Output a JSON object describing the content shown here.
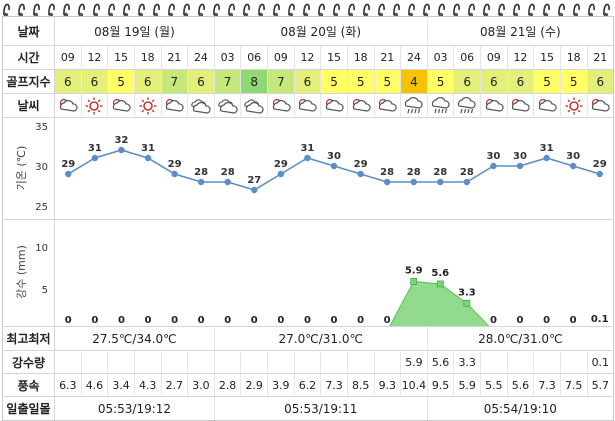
{
  "labels": {
    "date": "날짜",
    "time": "시간",
    "golf": "골프지수",
    "weather": "날씨",
    "minmax": "최고최저",
    "precip": "강수량",
    "wind": "풍속",
    "sun": "일출일몰"
  },
  "days": [
    "08월 19일 (월)",
    "08월 20일 (화)",
    "08월 21일 (수)"
  ],
  "hours": [
    "09",
    "12",
    "15",
    "18",
    "21",
    "24",
    "03",
    "06",
    "09",
    "12",
    "15",
    "18",
    "21",
    "24",
    "03",
    "06",
    "09",
    "12",
    "15",
    "18",
    "21"
  ],
  "golf_index": [
    6,
    6,
    5,
    6,
    7,
    6,
    7,
    8,
    7,
    6,
    5,
    5,
    5,
    4,
    5,
    6,
    6,
    6,
    5,
    5,
    6
  ],
  "golf_colors": {
    "4": "#f5c200",
    "5": "#ffff66",
    "6": "#e4ef7a",
    "7": "#c6e87a",
    "8": "#8fd873"
  },
  "weather_icons": [
    "partly-cloudy-icon",
    "sun-icon",
    "partly-cloudy-icon",
    "sun-icon",
    "partly-cloudy-icon",
    "cloudy-icon",
    "cloudy-icon",
    "cloudy-icon",
    "partly-cloudy-icon",
    "partly-cloudy-icon",
    "partly-cloudy-icon",
    "partly-cloudy-icon",
    "partly-cloudy-icon",
    "rain-icon",
    "rain-icon",
    "rain-icon",
    "partly-cloudy-icon",
    "partly-cloudy-icon",
    "partly-cloudy-icon",
    "sun-icon",
    "partly-cloudy-icon"
  ],
  "minmax": [
    "27.5℃/34.0℃",
    "27.0℃/31.0℃",
    "28.0℃/31.0℃"
  ],
  "precip": [
    "",
    "",
    "",
    "",
    "",
    "",
    "",
    "",
    "",
    "",
    "",
    "",
    "",
    "5.9",
    "5.6",
    "3.3",
    "",
    "",
    "",
    "",
    "0.1"
  ],
  "wind": [
    "6.3",
    "4.6",
    "3.4",
    "4.3",
    "2.7",
    "3.0",
    "2.8",
    "2.9",
    "3.9",
    "6.2",
    "7.3",
    "8.5",
    "9.3",
    "10.4",
    "9.5",
    "5.9",
    "5.5",
    "5.6",
    "7.3",
    "7.5",
    "5.7"
  ],
  "sun": [
    "05:53/19:12",
    "05:53/19:11",
    "05:54/19:10"
  ],
  "chart_data": [
    {
      "type": "line",
      "ylabel": "기온 (℃)",
      "x": [
        "09",
        "12",
        "15",
        "18",
        "21",
        "24",
        "03",
        "06",
        "09",
        "12",
        "15",
        "18",
        "21",
        "24",
        "03",
        "06",
        "09",
        "12",
        "15",
        "18",
        "21"
      ],
      "values": [
        29,
        31,
        32,
        31,
        29,
        28,
        28,
        27,
        29,
        31,
        30,
        29,
        28,
        28,
        28,
        28,
        30,
        30,
        31,
        30,
        29
      ],
      "ylim": [
        25,
        35
      ],
      "yticks": [
        25,
        30,
        35
      ],
      "color": "#5b8ec9"
    },
    {
      "type": "area",
      "ylabel": "강수 (mm)",
      "x": [
        "09",
        "12",
        "15",
        "18",
        "21",
        "24",
        "03",
        "06",
        "09",
        "12",
        "15",
        "18",
        "21",
        "24",
        "03",
        "06",
        "09",
        "12",
        "15",
        "18",
        "21"
      ],
      "values": [
        0,
        0,
        0,
        0,
        0,
        0,
        0,
        0,
        0,
        0,
        0,
        0,
        0,
        5.9,
        5.6,
        3.3,
        0,
        0,
        0,
        0,
        0.1
      ],
      "ylim": [
        0,
        10
      ],
      "yticks": [
        0,
        5,
        10
      ],
      "color": "#7ed37a"
    }
  ]
}
